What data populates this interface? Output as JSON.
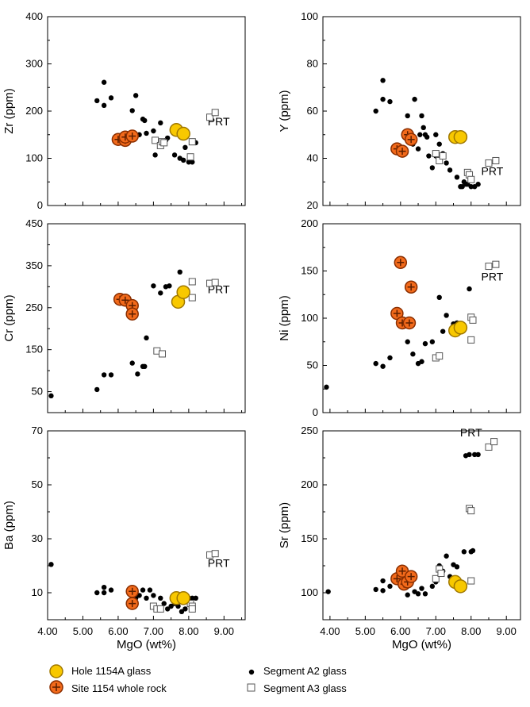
{
  "chart_data": [
    {
      "type": "scatter",
      "ylabel": "Zr (ppm)",
      "xlim": [
        4.0,
        9.6
      ],
      "ylim": [
        0,
        400
      ],
      "yticks": [
        0,
        100,
        200,
        300,
        400
      ],
      "xticklabels": false,
      "annotation": {
        "text": "PRT",
        "x": 8.85,
        "y": 170
      },
      "series": [
        {
          "name": "Segment A2 glass",
          "points": [
            [
              5.4,
              222
            ],
            [
              5.6,
              261
            ],
            [
              5.6,
              212
            ],
            [
              5.8,
              228
            ],
            [
              6.4,
              201
            ],
            [
              6.5,
              233
            ],
            [
              6.6,
              150
            ],
            [
              6.7,
              183
            ],
            [
              6.75,
              180
            ],
            [
              6.8,
              153
            ],
            [
              7.0,
              158
            ],
            [
              7.05,
              107
            ],
            [
              7.2,
              175
            ],
            [
              7.35,
              138
            ],
            [
              7.4,
              143
            ],
            [
              7.6,
              107
            ],
            [
              7.75,
              100
            ],
            [
              7.85,
              96
            ],
            [
              7.9,
              123
            ],
            [
              8.0,
              92
            ],
            [
              8.1,
              92
            ],
            [
              8.2,
              133
            ]
          ]
        },
        {
          "name": "Segment A3 glass",
          "points": [
            [
              7.05,
              138
            ],
            [
              7.2,
              127
            ],
            [
              7.25,
              135
            ],
            [
              7.3,
              133
            ],
            [
              8.05,
              103
            ],
            [
              8.1,
              135
            ],
            [
              8.6,
              187
            ],
            [
              8.75,
              197
            ]
          ]
        },
        {
          "name": "Hole 1154A glass",
          "points": [
            [
              7.65,
              160
            ],
            [
              7.85,
              152
            ]
          ]
        },
        {
          "name": "Site 1154 whole rock",
          "points": [
            [
              6.0,
              140
            ],
            [
              6.2,
              138
            ],
            [
              6.2,
              145
            ],
            [
              6.4,
              147
            ]
          ]
        }
      ]
    },
    {
      "type": "scatter",
      "ylabel": "Y (ppm)",
      "xlim": [
        3.8,
        9.4
      ],
      "ylim": [
        20,
        100
      ],
      "yticks": [
        20,
        40,
        60,
        80,
        100
      ],
      "xticklabels": false,
      "annotation": {
        "text": "PRT",
        "x": 8.6,
        "y": 33
      },
      "series": [
        {
          "name": "Segment A2 glass",
          "points": [
            [
              5.3,
              60
            ],
            [
              5.5,
              73
            ],
            [
              5.5,
              65
            ],
            [
              5.7,
              64
            ],
            [
              6.2,
              58
            ],
            [
              6.3,
              50
            ],
            [
              6.35,
              46
            ],
            [
              6.4,
              65
            ],
            [
              6.5,
              44
            ],
            [
              6.55,
              50
            ],
            [
              6.6,
              58
            ],
            [
              6.65,
              53
            ],
            [
              6.7,
              50
            ],
            [
              6.75,
              49
            ],
            [
              6.8,
              41
            ],
            [
              6.9,
              36
            ],
            [
              7.0,
              50
            ],
            [
              7.0,
              41
            ],
            [
              7.1,
              46
            ],
            [
              7.2,
              42
            ],
            [
              7.3,
              38
            ],
            [
              7.4,
              35
            ],
            [
              7.6,
              32
            ],
            [
              7.7,
              28
            ],
            [
              7.75,
              28
            ],
            [
              7.8,
              30
            ],
            [
              7.85,
              29
            ],
            [
              7.9,
              29
            ],
            [
              8.0,
              28
            ],
            [
              8.1,
              28
            ],
            [
              8.2,
              29
            ]
          ]
        },
        {
          "name": "Segment A3 glass",
          "points": [
            [
              7.0,
              42
            ],
            [
              7.1,
              39
            ],
            [
              7.2,
              41
            ],
            [
              7.9,
              34
            ],
            [
              7.95,
              33
            ],
            [
              8.0,
              31
            ],
            [
              8.5,
              38
            ],
            [
              8.7,
              39
            ]
          ]
        },
        {
          "name": "Hole 1154A glass",
          "points": [
            [
              7.55,
              49
            ],
            [
              7.7,
              49
            ]
          ]
        },
        {
          "name": "Site 1154 whole rock",
          "points": [
            [
              5.9,
              44
            ],
            [
              6.05,
              43
            ],
            [
              6.2,
              50
            ],
            [
              6.3,
              48
            ]
          ]
        }
      ]
    },
    {
      "type": "scatter",
      "ylabel": "Cr (ppm)",
      "xlim": [
        4.0,
        9.6
      ],
      "ylim": [
        0,
        450
      ],
      "yticks": [
        50,
        150,
        250,
        350,
        450
      ],
      "xticklabels": false,
      "annotation": {
        "text": "PRT",
        "x": 8.85,
        "y": 285
      },
      "series": [
        {
          "name": "Segment A2 glass",
          "points": [
            [
              4.1,
              40
            ],
            [
              5.4,
              55
            ],
            [
              5.6,
              90
            ],
            [
              5.8,
              90
            ],
            [
              6.4,
              118
            ],
            [
              6.55,
              92
            ],
            [
              6.7,
              110
            ],
            [
              6.75,
              110
            ],
            [
              6.8,
              178
            ],
            [
              7.0,
              302
            ],
            [
              7.2,
              285
            ],
            [
              7.35,
              300
            ],
            [
              7.45,
              302
            ],
            [
              7.75,
              335
            ]
          ]
        },
        {
          "name": "Segment A3 glass",
          "points": [
            [
              7.1,
              147
            ],
            [
              7.25,
              140
            ],
            [
              8.1,
              312
            ],
            [
              8.1,
              274
            ],
            [
              8.6,
              308
            ],
            [
              8.75,
              310
            ]
          ]
        },
        {
          "name": "Hole 1154A glass",
          "points": [
            [
              7.7,
              264
            ],
            [
              7.85,
              287
            ]
          ]
        },
        {
          "name": "Site 1154 whole rock",
          "points": [
            [
              6.05,
              270
            ],
            [
              6.2,
              268
            ],
            [
              6.4,
              255
            ],
            [
              6.4,
              235
            ]
          ]
        }
      ]
    },
    {
      "type": "scatter",
      "ylabel": "Ni (ppm)",
      "xlim": [
        3.8,
        9.4
      ],
      "ylim": [
        0,
        200
      ],
      "yticks": [
        0,
        50,
        100,
        150,
        200
      ],
      "xticklabels": false,
      "annotation": {
        "text": "PRT",
        "x": 8.6,
        "y": 140
      },
      "series": [
        {
          "name": "Segment A2 glass",
          "points": [
            [
              3.9,
              27
            ],
            [
              5.3,
              52
            ],
            [
              5.5,
              49
            ],
            [
              5.7,
              58
            ],
            [
              6.2,
              75
            ],
            [
              6.35,
              62
            ],
            [
              6.5,
              52
            ],
            [
              6.6,
              54
            ],
            [
              6.7,
              73
            ],
            [
              6.9,
              75
            ],
            [
              7.1,
              122
            ],
            [
              7.2,
              86
            ],
            [
              7.3,
              103
            ],
            [
              7.5,
              94
            ],
            [
              7.6,
              95
            ],
            [
              7.95,
              131
            ]
          ]
        },
        {
          "name": "Segment A3 glass",
          "points": [
            [
              7.0,
              58
            ],
            [
              7.1,
              60
            ],
            [
              8.0,
              101
            ],
            [
              8.0,
              77
            ],
            [
              8.05,
              98
            ],
            [
              8.5,
              155
            ],
            [
              8.7,
              157
            ]
          ]
        },
        {
          "name": "Hole 1154A glass",
          "points": [
            [
              7.55,
              87
            ],
            [
              7.7,
              90
            ]
          ]
        },
        {
          "name": "Site 1154 whole rock",
          "points": [
            [
              5.9,
              105
            ],
            [
              6.0,
              159
            ],
            [
              6.05,
              95
            ],
            [
              6.25,
              95
            ],
            [
              6.3,
              133
            ]
          ]
        }
      ]
    },
    {
      "type": "scatter",
      "ylabel": "Ba (ppm)",
      "xlabel": "MgO (wt%)",
      "xlim": [
        4.0,
        9.6
      ],
      "ylim": [
        0,
        70
      ],
      "yticks": [
        10,
        30,
        50,
        70
      ],
      "xticks": [
        4.0,
        5.0,
        6.0,
        7.0,
        8.0,
        9.0
      ],
      "xticklabels": [
        "4.00",
        "5.00",
        "6.00",
        "7.00",
        "8.00",
        "9.00"
      ],
      "annotation": {
        "text": "PRT",
        "x": 8.85,
        "y": 19.5
      },
      "series": [
        {
          "name": "Segment A2 glass",
          "points": [
            [
              4.1,
              20.5
            ],
            [
              5.4,
              10
            ],
            [
              5.6,
              12
            ],
            [
              5.6,
              10
            ],
            [
              5.8,
              11
            ],
            [
              6.4,
              10
            ],
            [
              6.5,
              8
            ],
            [
              6.6,
              9
            ],
            [
              6.7,
              11
            ],
            [
              6.8,
              8
            ],
            [
              6.9,
              11
            ],
            [
              7.0,
              9
            ],
            [
              7.2,
              8
            ],
            [
              7.3,
              6
            ],
            [
              7.4,
              4
            ],
            [
              7.5,
              5
            ],
            [
              7.6,
              6
            ],
            [
              7.7,
              5
            ],
            [
              7.8,
              3
            ],
            [
              7.9,
              4
            ],
            [
              8.0,
              8
            ],
            [
              8.1,
              8
            ],
            [
              8.2,
              8
            ]
          ]
        },
        {
          "name": "Segment A3 glass",
          "points": [
            [
              7.0,
              5
            ],
            [
              7.1,
              4
            ],
            [
              7.2,
              4
            ],
            [
              8.05,
              6
            ],
            [
              8.1,
              5
            ],
            [
              8.1,
              4
            ],
            [
              8.6,
              24
            ],
            [
              8.75,
              24.5
            ]
          ]
        },
        {
          "name": "Hole 1154A glass",
          "points": [
            [
              7.65,
              8
            ],
            [
              7.85,
              8
            ]
          ]
        },
        {
          "name": "Site 1154 whole rock",
          "points": [
            [
              6.4,
              10.5
            ],
            [
              6.4,
              6
            ]
          ]
        }
      ]
    },
    {
      "type": "scatter",
      "ylabel": "Sr (ppm)",
      "xlabel": "MgO (wt%)",
      "xlim": [
        3.8,
        9.4
      ],
      "ylim": [
        75,
        250
      ],
      "yticks": [
        100,
        150,
        200,
        250
      ],
      "xticks": [
        4.0,
        5.0,
        6.0,
        7.0,
        8.0,
        9.0
      ],
      "xticklabels": [
        "4.00",
        "5.00",
        "6.00",
        "7.00",
        "8.00",
        "9.00"
      ],
      "annotation": {
        "text": "PRT",
        "x": 8.0,
        "y": 245
      },
      "series": [
        {
          "name": "Segment A2 glass",
          "points": [
            [
              3.95,
              101
            ],
            [
              5.3,
              103
            ],
            [
              5.5,
              102
            ],
            [
              5.5,
              111
            ],
            [
              5.7,
              106
            ],
            [
              6.2,
              98
            ],
            [
              6.4,
              101
            ],
            [
              6.5,
              99
            ],
            [
              6.6,
              104
            ],
            [
              6.7,
              99
            ],
            [
              6.9,
              106
            ],
            [
              7.0,
              110
            ],
            [
              7.1,
              125
            ],
            [
              7.2,
              120
            ],
            [
              7.3,
              134
            ],
            [
              7.4,
              115
            ],
            [
              7.5,
              126
            ],
            [
              7.6,
              124
            ],
            [
              7.7,
              105
            ],
            [
              7.8,
              138
            ],
            [
              7.85,
              227
            ],
            [
              7.95,
              228
            ],
            [
              8.0,
              138
            ],
            [
              8.05,
              139
            ],
            [
              8.1,
              228
            ],
            [
              8.2,
              228
            ]
          ]
        },
        {
          "name": "Segment A3 glass",
          "points": [
            [
              7.0,
              113
            ],
            [
              7.1,
              122
            ],
            [
              7.15,
              118
            ],
            [
              7.95,
              178
            ],
            [
              8.0,
              176
            ],
            [
              8.0,
              111
            ],
            [
              8.5,
              235
            ],
            [
              8.65,
              240
            ]
          ]
        },
        {
          "name": "Hole 1154A glass",
          "points": [
            [
              7.55,
              110
            ],
            [
              7.7,
              106
            ]
          ]
        },
        {
          "name": "Site 1154 whole rock",
          "points": [
            [
              5.9,
              113
            ],
            [
              6.05,
              120
            ],
            [
              6.1,
              108
            ],
            [
              6.2,
              110
            ],
            [
              6.3,
              115
            ]
          ]
        }
      ]
    }
  ],
  "legend": {
    "items": [
      {
        "label": "Hole 1154A glass",
        "symbol": "hole-glass"
      },
      {
        "label": "Site 1154 whole rock",
        "symbol": "whole-rock"
      },
      {
        "label": "Segment A2 glass",
        "symbol": "a2-glass"
      },
      {
        "label": "Segment A3 glass",
        "symbol": "a3-glass"
      }
    ]
  },
  "colors": {
    "hole_glass_fill": "#F8C800",
    "hole_glass_stroke": "#A07800",
    "whole_rock_fill": "#F26A1B",
    "whole_rock_stroke": "#8A2E00",
    "a2_fill": "#000000",
    "a3_stroke": "#555555"
  }
}
